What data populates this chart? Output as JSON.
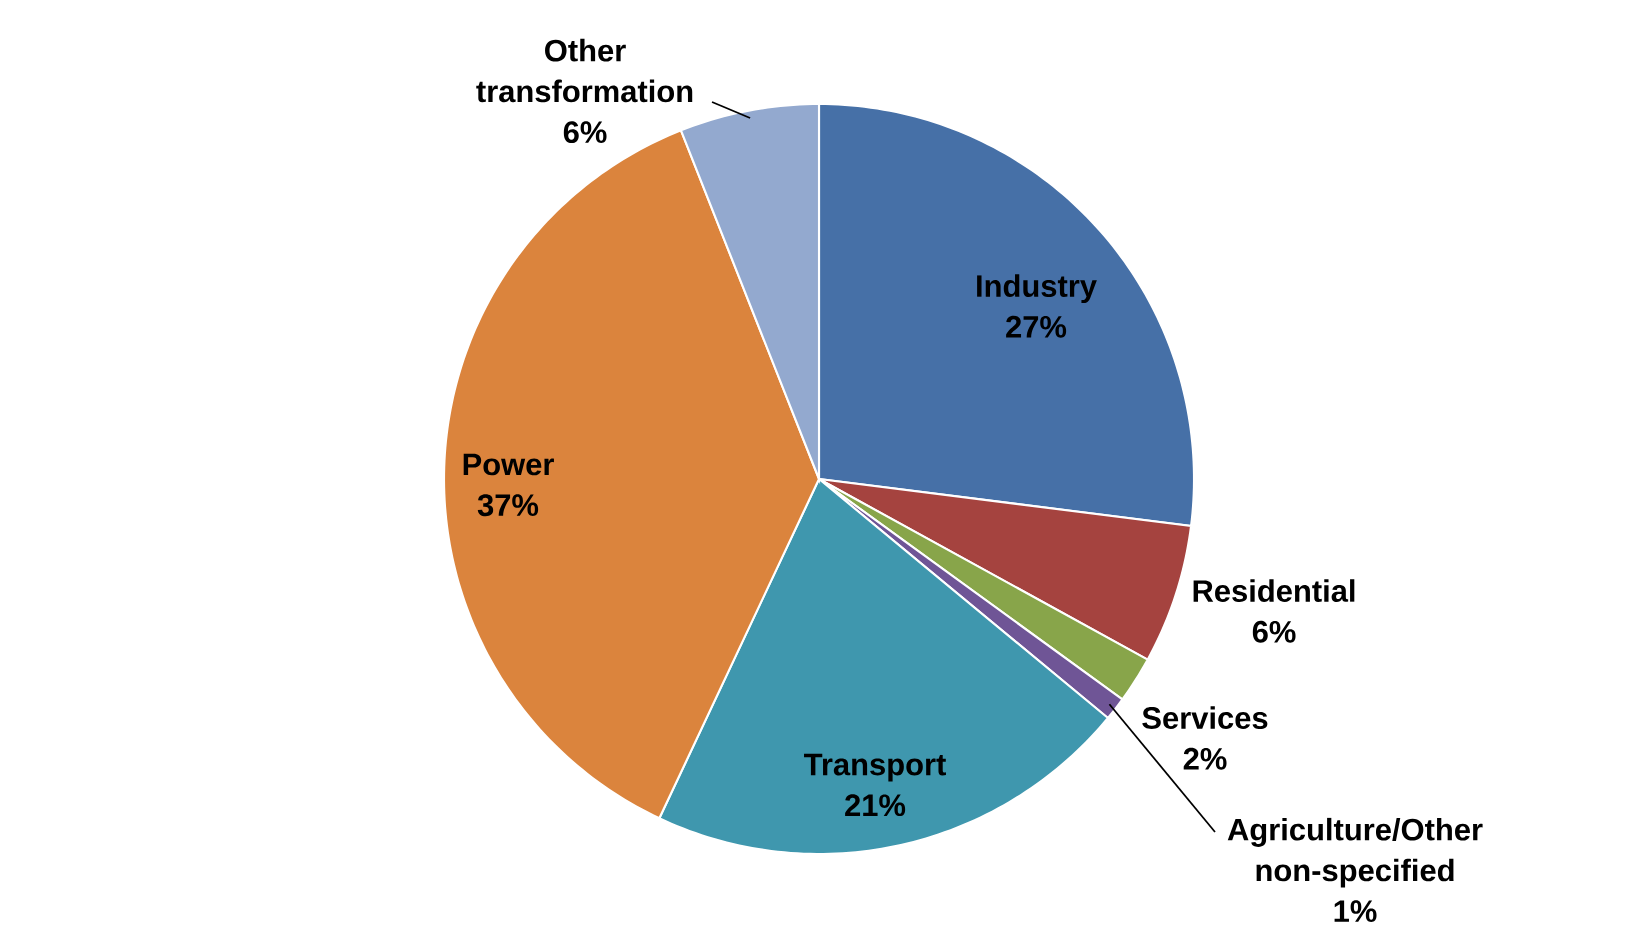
{
  "chart_data": {
    "type": "pie",
    "categories": [
      "Industry",
      "Residential",
      "Services",
      "Agriculture/Other non-specified",
      "Transport",
      "Power",
      "Other transformation"
    ],
    "values": [
      27,
      6,
      2,
      1,
      21,
      37,
      6
    ],
    "value_labels": [
      "27%",
      "6%",
      "2%",
      "1%",
      "21%",
      "37%",
      "6%"
    ],
    "colors": [
      "#4670a7",
      "#a5433f",
      "#88a54a",
      "#6f5596",
      "#3f97ae",
      "#db843d",
      "#93a9cf"
    ]
  }
}
